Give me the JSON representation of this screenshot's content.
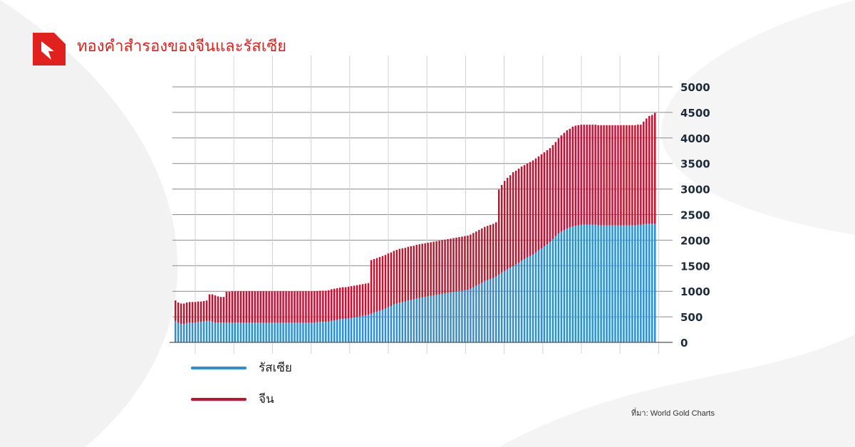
{
  "header": {
    "title": "ทองคำสำรองของจีนและรัสเซีย"
  },
  "source": {
    "text": "ที่มา: World Gold Charts"
  },
  "colors": {
    "brand": "#e0211d",
    "russia": "#2a8fd6",
    "china": "#c8102e",
    "grid": "#8a8a8a"
  },
  "icons": {
    "logo": "brand-logo-icon"
  },
  "chart_data": {
    "type": "bar",
    "stacked": true,
    "grid": true,
    "legend_placement": "bottom-left",
    "y_axis_side": "right",
    "ylim": [
      0,
      5000
    ],
    "yticks": [
      "5000",
      "4500",
      "4000",
      "3500",
      "3000",
      "2500",
      "2000",
      "1500",
      "1000",
      "500",
      "0"
    ],
    "xlabel": "",
    "ylabel": "",
    "series": [
      {
        "name": "รัสเซีย",
        "values": [
          420,
          380,
          360,
          360,
          380,
          390,
          390,
          390,
          400,
          400,
          410,
          420,
          420,
          400,
          390,
          390,
          390,
          390,
          390,
          390,
          390,
          390,
          390,
          390,
          390,
          390,
          390,
          390,
          390,
          390,
          390,
          390,
          390,
          390,
          390,
          390,
          390,
          390,
          390,
          390,
          390,
          390,
          390,
          390,
          390,
          390,
          390,
          390,
          390,
          390,
          395,
          400,
          400,
          400,
          410,
          420,
          430,
          440,
          450,
          460,
          460,
          470,
          480,
          490,
          500,
          510,
          520,
          530,
          540,
          560,
          580,
          600,
          620,
          640,
          660,
          690,
          710,
          740,
          760,
          780,
          790,
          800,
          820,
          830,
          840,
          860,
          870,
          880,
          890,
          900,
          910,
          920,
          930,
          940,
          950,
          960,
          970,
          980,
          990,
          1000,
          1010,
          1010,
          1020,
          1030,
          1050,
          1080,
          1110,
          1140,
          1170,
          1200,
          1220,
          1240,
          1260,
          1290,
          1330,
          1370,
          1400,
          1430,
          1460,
          1490,
          1520,
          1560,
          1600,
          1630,
          1660,
          1690,
          1720,
          1760,
          1800,
          1840,
          1880,
          1920,
          1960,
          2020,
          2080,
          2130,
          2170,
          2200,
          2230,
          2250,
          2270,
          2280,
          2290,
          2300,
          2300,
          2300,
          2300,
          2300,
          2300,
          2290,
          2290,
          2290,
          2290,
          2290,
          2290,
          2290,
          2290,
          2290,
          2290,
          2290,
          2290,
          2290,
          2290,
          2300,
          2300,
          2310,
          2320,
          2320,
          2320,
          2320
        ]
      },
      {
        "name": "จีน",
        "values": [
          400,
          400,
          400,
          400,
          400,
          400,
          400,
          400,
          400,
          400,
          400,
          400,
          520,
          540,
          530,
          510,
          500,
          500,
          600,
          600,
          610,
          610,
          610,
          610,
          610,
          610,
          610,
          610,
          610,
          610,
          610,
          610,
          610,
          610,
          610,
          610,
          610,
          610,
          610,
          610,
          610,
          610,
          610,
          610,
          610,
          610,
          610,
          610,
          610,
          610,
          610,
          610,
          610,
          610,
          610,
          620,
          620,
          620,
          620,
          620,
          620,
          620,
          620,
          620,
          620,
          620,
          620,
          620,
          620,
          1050,
          1050,
          1050,
          1050,
          1050,
          1050,
          1050,
          1050,
          1050,
          1050,
          1050,
          1050,
          1050,
          1050,
          1050,
          1050,
          1050,
          1050,
          1050,
          1050,
          1050,
          1050,
          1050,
          1050,
          1050,
          1050,
          1050,
          1050,
          1050,
          1050,
          1050,
          1050,
          1060,
          1060,
          1060,
          1060,
          1060,
          1060,
          1060,
          1060,
          1060,
          1060,
          1060,
          1060,
          1060,
          1660,
          1710,
          1760,
          1790,
          1810,
          1840,
          1840,
          1840,
          1840,
          1840,
          1840,
          1840,
          1840,
          1840,
          1840,
          1840,
          1840,
          1840,
          1840,
          1840,
          1840,
          1860,
          1880,
          1900,
          1920,
          1930,
          1950,
          1960,
          1960,
          1960,
          1960,
          1960,
          1960,
          1960,
          1960,
          1960,
          1960,
          1960,
          1960,
          1960,
          1960,
          1960,
          1960,
          1960,
          1960,
          1960,
          1960,
          1960,
          1960,
          1960,
          1960,
          2010,
          2060,
          2110,
          2130,
          2170,
          2220,
          2240
        ]
      }
    ]
  }
}
